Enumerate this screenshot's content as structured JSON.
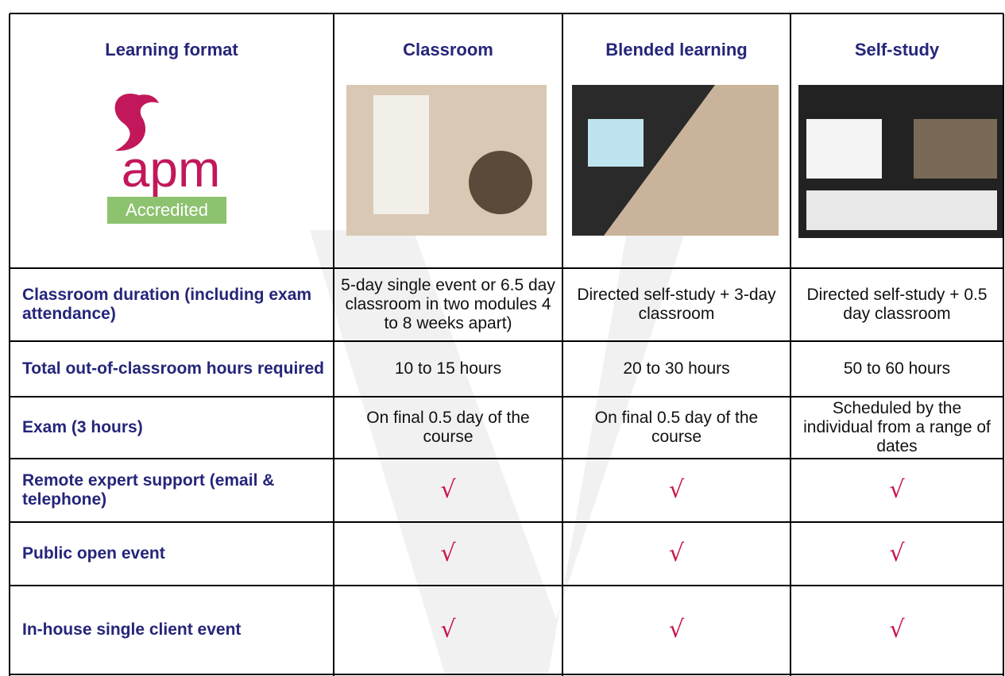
{
  "table": {
    "header": [
      "Learning format",
      "Classroom",
      "Blended learning",
      "Self-study"
    ],
    "logo": {
      "text": "apm",
      "badge": "Accredited"
    },
    "rows": [
      [
        "Classroom duration (including exam attendance)",
        "5-day single event or 6.5 day classroom in two modules 4 to 8 weeks apart)",
        "Directed self-study + 3-day classroom",
        "Directed self-study + 0.5 day classroom"
      ],
      [
        "Total out-of-classroom hours required",
        "10 to 15 hours",
        "20 to 30 hours",
        "50 to 60 hours"
      ],
      [
        "Exam (3 hours)",
        "On final 0.5 day of the course",
        "On final 0.5 day of the course",
        "Scheduled by the individual from a range of dates"
      ],
      [
        "Remote expert support (email & telephone)",
        "√",
        "√",
        "√"
      ],
      [
        "Public open event",
        "√",
        "√",
        "√"
      ],
      [
        "In-house single client event",
        "√",
        "√",
        "√"
      ]
    ]
  }
}
